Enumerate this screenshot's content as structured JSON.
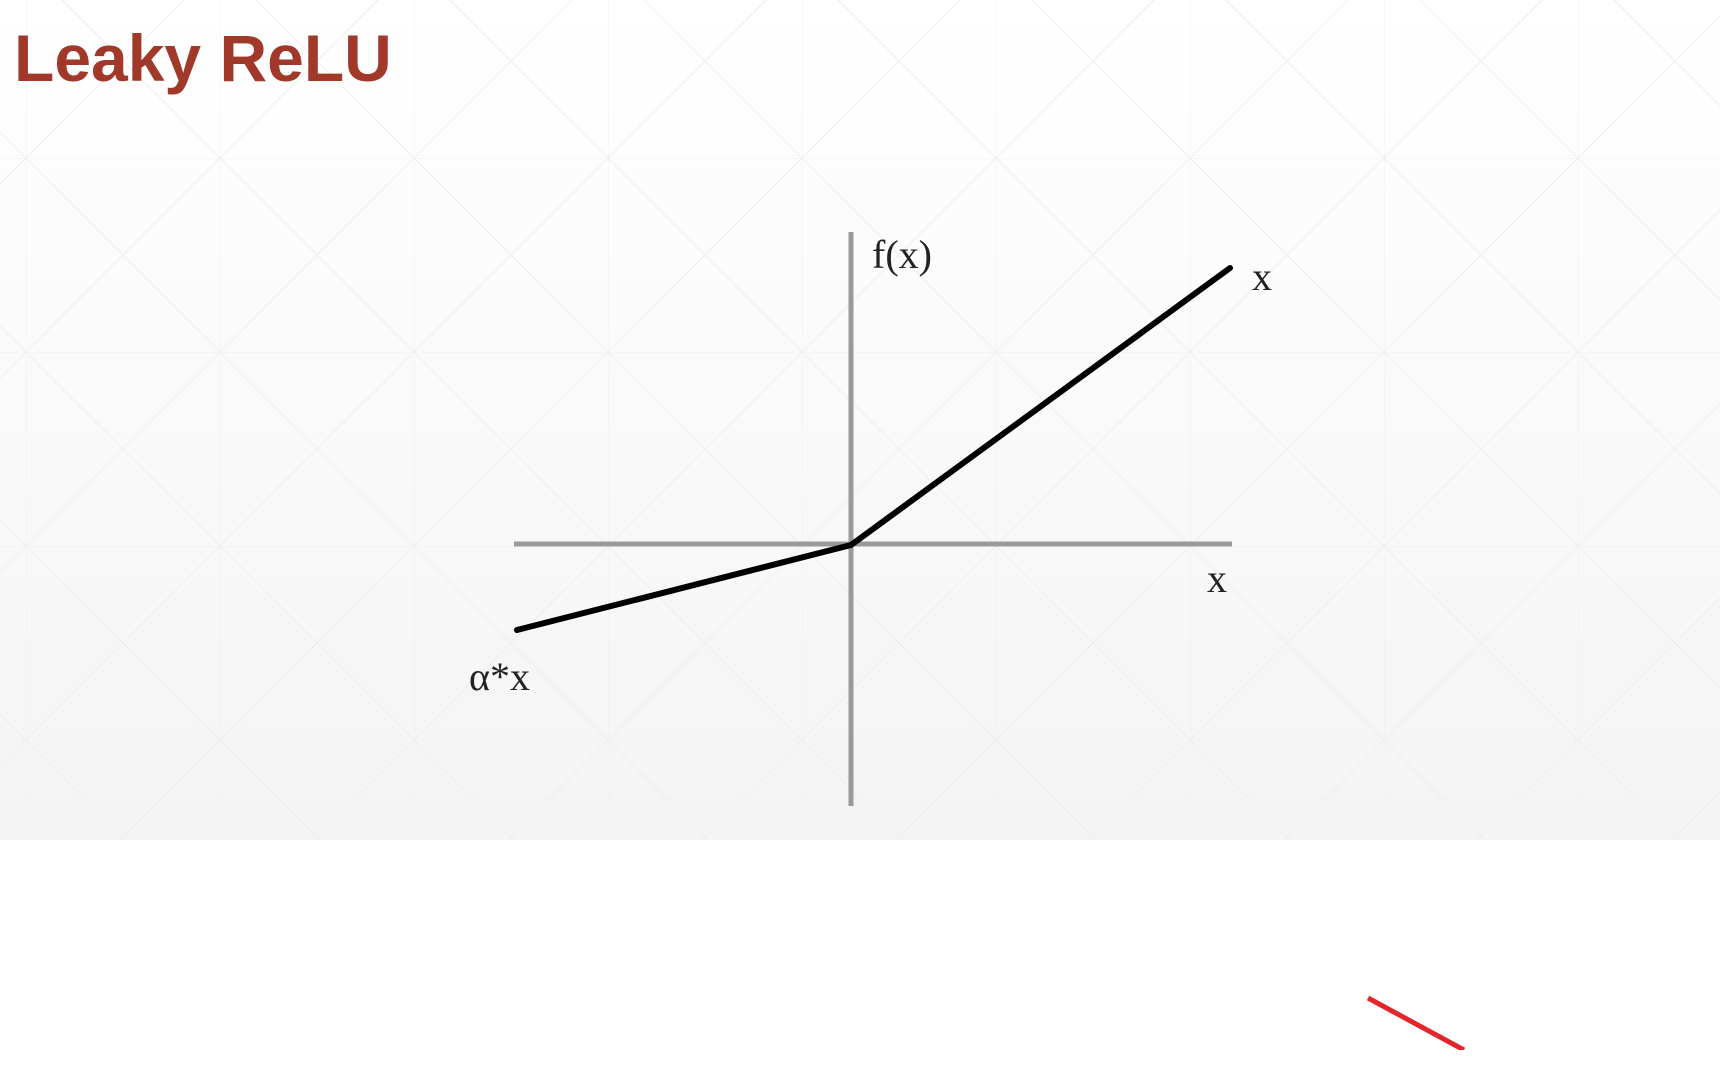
{
  "slide": {
    "title": "Leaky ReLU",
    "title_color": "#A0392A",
    "accent_color": "#E3262B"
  },
  "diagram": {
    "y_axis_label": "f(x)",
    "x_axis_label": "x",
    "positive_branch_label": "x",
    "negative_branch_label": "α*x",
    "line_color": "#000000",
    "axis_color": "#9A9A9A"
  }
}
